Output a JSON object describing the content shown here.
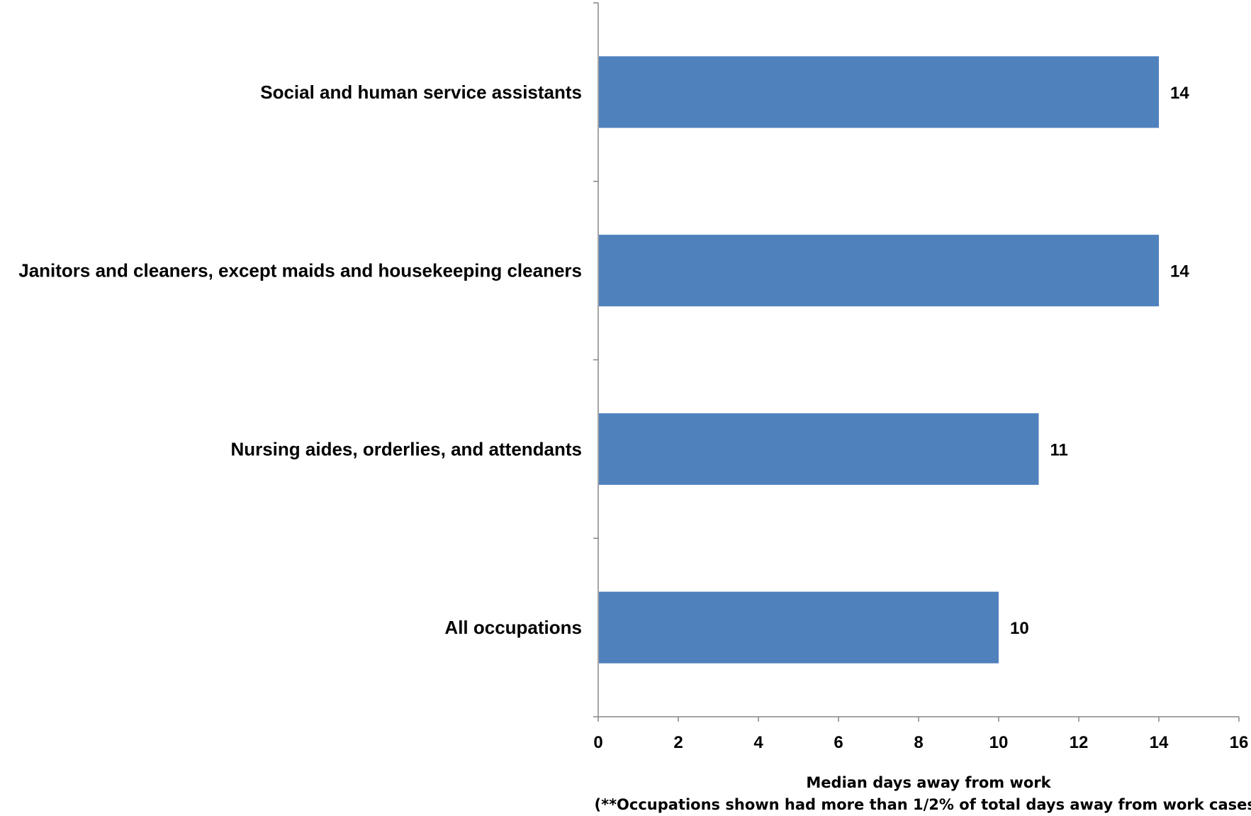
{
  "chart_data": {
    "type": "bar",
    "orientation": "horizontal",
    "categories": [
      "Social and human service assistants",
      "Janitors and cleaners, except maids and housekeeping cleaners",
      "Nursing aides, orderlies, and attendants",
      "All occupations"
    ],
    "values": [
      14,
      14,
      11,
      10
    ],
    "data_labels": [
      "14",
      "14",
      "11",
      "10"
    ],
    "xlim": [
      0,
      16
    ],
    "x_ticks": [
      0,
      2,
      4,
      6,
      8,
      10,
      12,
      14,
      16
    ],
    "xlabel": "Median days away from work",
    "xlabel_note": "(**Occupations shown had more than 1/2% of total days away from work cases)",
    "grid": false,
    "legend": "none",
    "bar_color": "#4F81BD"
  }
}
